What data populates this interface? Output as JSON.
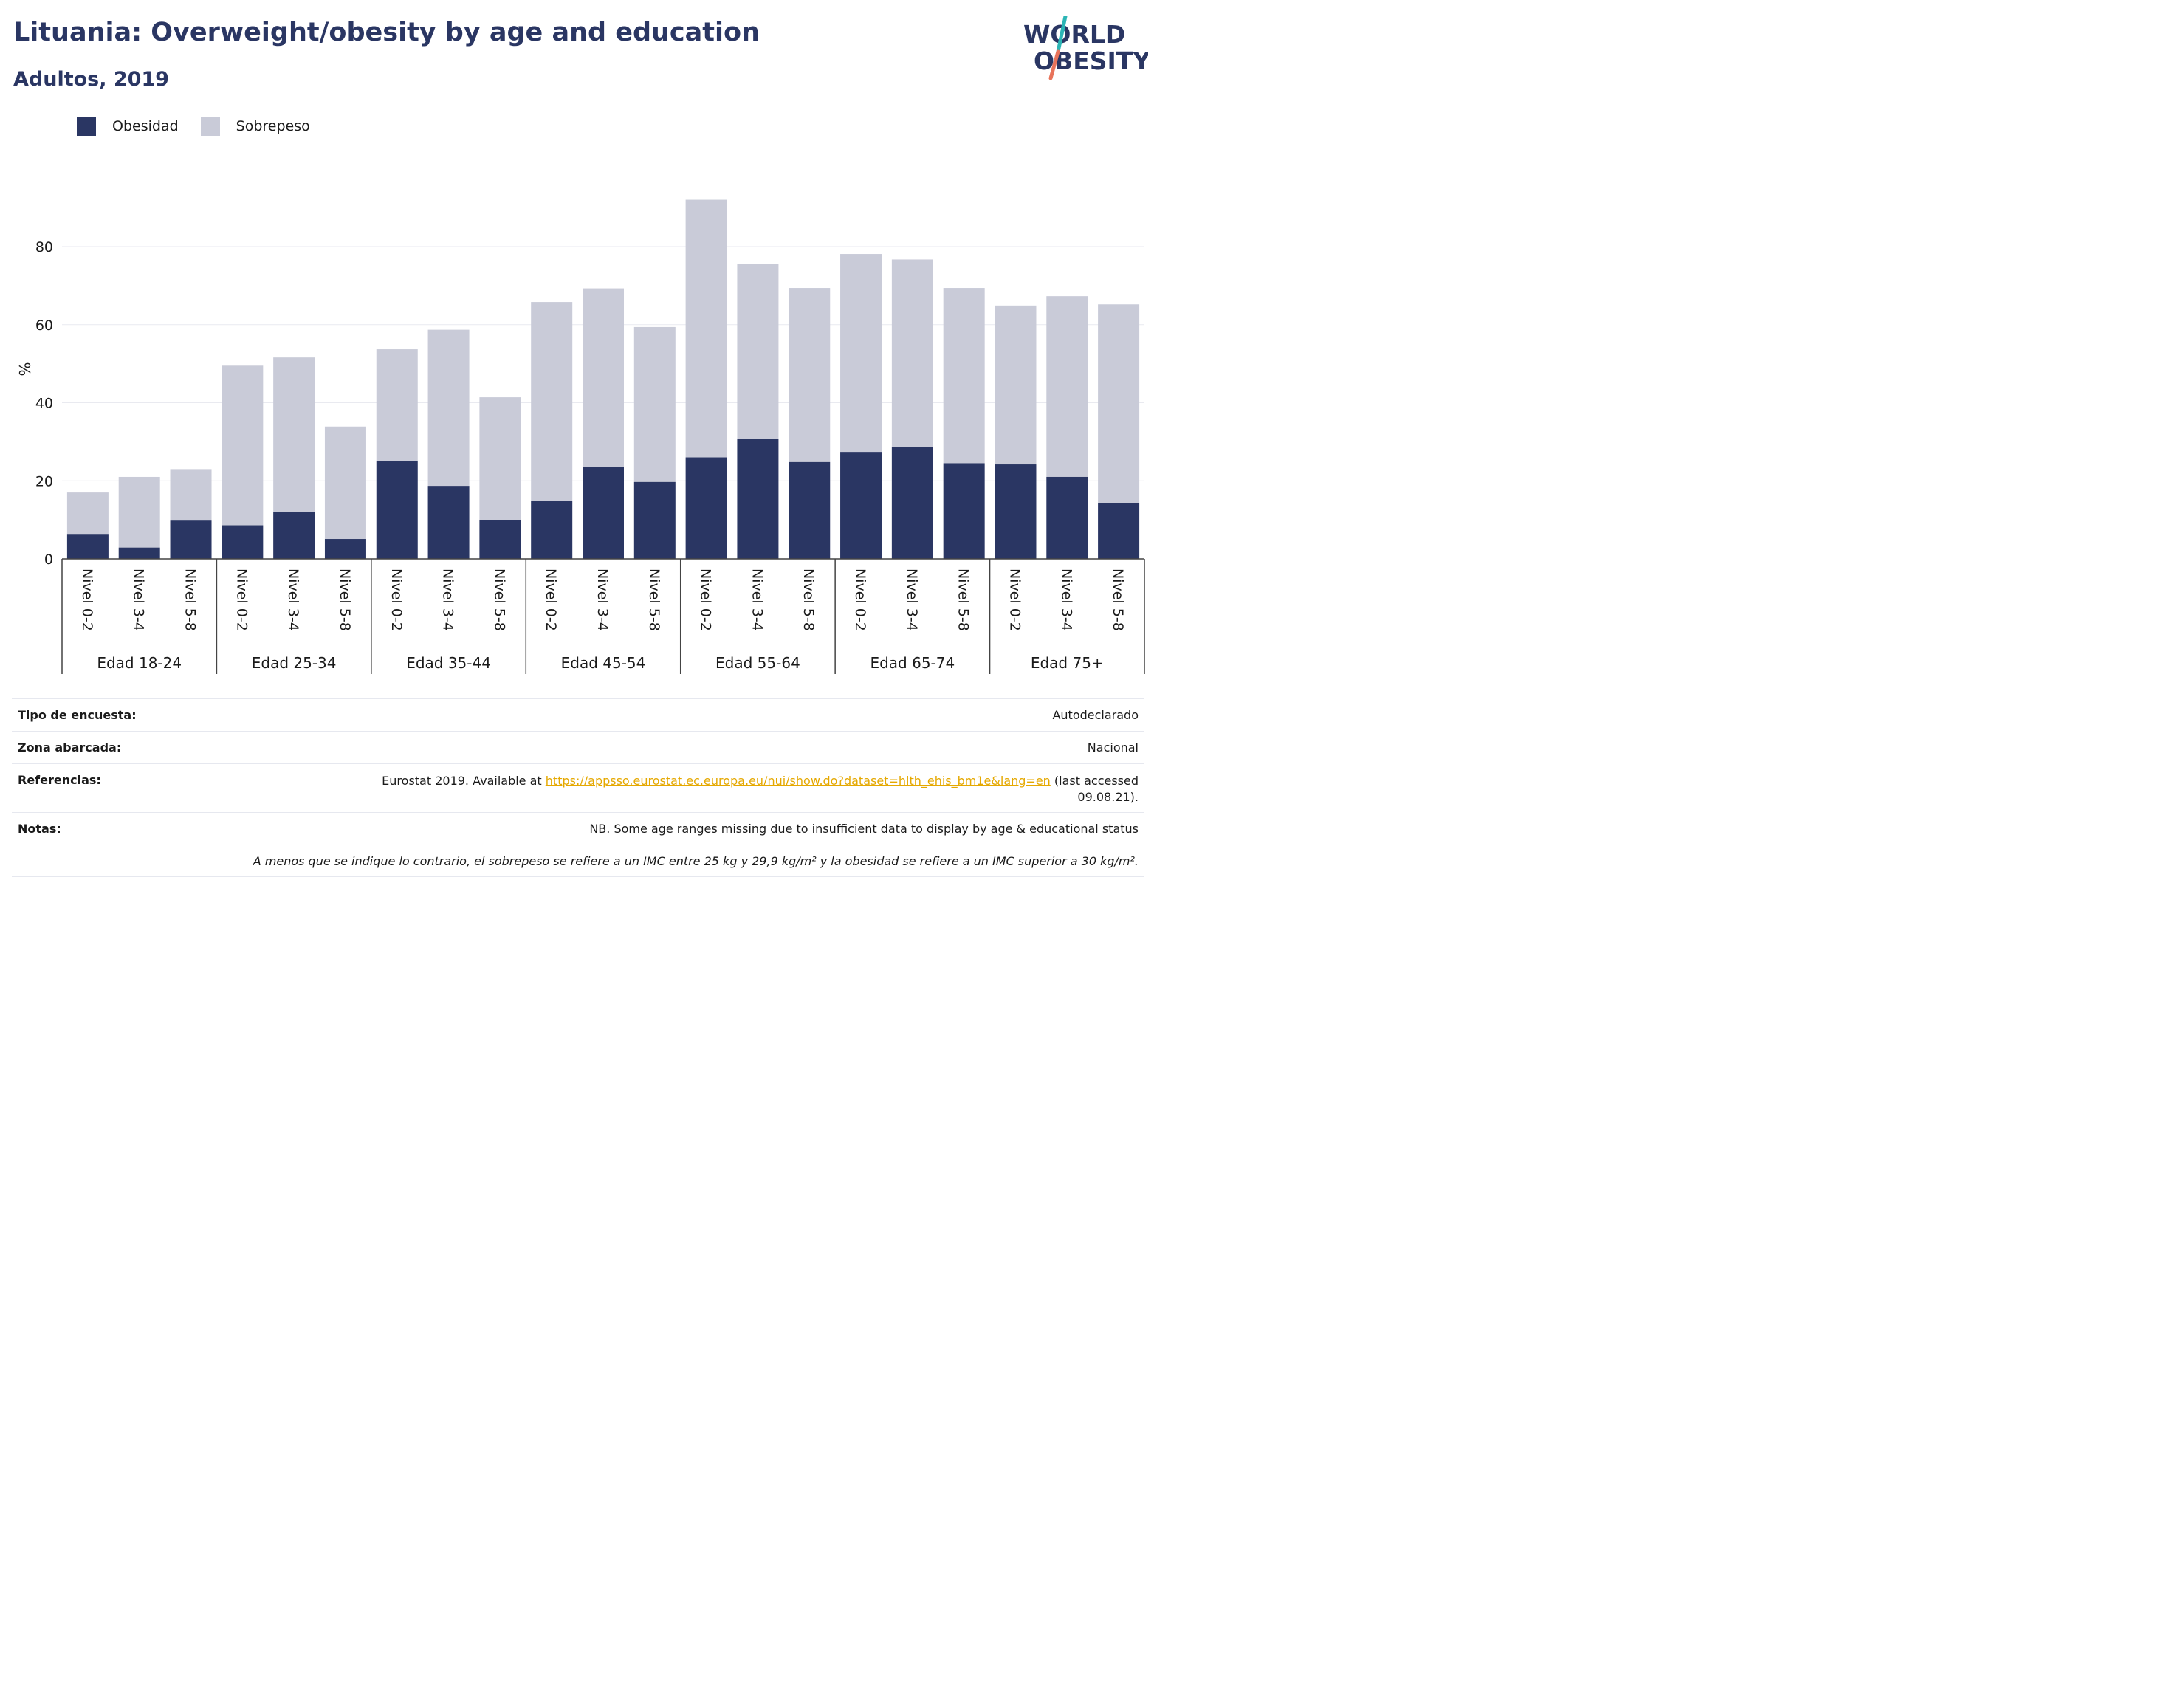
{
  "header": {
    "title": "Lituania: Overweight/obesity by age and education",
    "subtitle": "Adultos, 2019"
  },
  "logo": {
    "line1": "WORLD",
    "line2": "OBESITY",
    "colors": {
      "text": "#2a3663",
      "slash_top": "#2bb5b5",
      "slash_bottom": "#e8735a"
    }
  },
  "legend": {
    "items": [
      {
        "label": "Obesidad",
        "color": "#2a3663"
      },
      {
        "label": "Sobrepeso",
        "color": "#c9cbd8"
      }
    ]
  },
  "chart_data": {
    "type": "bar",
    "stacked": true,
    "ylabel": "%",
    "ylim": [
      0,
      95
    ],
    "yticks": [
      0,
      20,
      40,
      60,
      80
    ],
    "grid": true,
    "legend_position": "top-left",
    "groups": [
      "Edad 18-24",
      "Edad 25-34",
      "Edad 35-44",
      "Edad 45-54",
      "Edad 55-64",
      "Edad 65-74",
      "Edad 75+"
    ],
    "subcategories": [
      "Nivel 0-2",
      "Nivel 3-4",
      "Nivel 5-8"
    ],
    "series": [
      {
        "name": "Obesidad",
        "color": "#2a3663",
        "values": [
          6.2,
          2.9,
          9.8,
          8.6,
          12.0,
          5.1,
          25.0,
          18.7,
          10.0,
          14.8,
          23.6,
          19.7,
          26.0,
          30.8,
          24.8,
          27.4,
          28.7,
          24.5,
          24.2,
          21.0,
          14.2
        ]
      },
      {
        "name": "Sobrepeso",
        "color": "#c9cbd8",
        "values": [
          10.8,
          18.1,
          13.2,
          40.9,
          39.6,
          28.8,
          28.7,
          40.0,
          31.4,
          51.0,
          45.7,
          39.7,
          66.0,
          44.8,
          44.6,
          50.7,
          48.0,
          44.9,
          40.7,
          46.3,
          51.0
        ]
      }
    ]
  },
  "info": {
    "survey": {
      "label": "Tipo de encuesta:",
      "value": "Autodeclarado"
    },
    "area": {
      "label": "Zona abarcada:",
      "value": "Nacional"
    },
    "references": {
      "label": "Referencias:",
      "prefix": "Eurostat 2019. Available at ",
      "link": "https://appsso.eurostat.ec.europa.eu/nui/show.do?dataset=hlth_ehis_bm1e&lang=en",
      "suffix": " (last accessed",
      "line2": "09.08.21)."
    },
    "notes": {
      "label": "Notas:",
      "value": "NB. Some age ranges missing due to insufficient data to display by age & educational status"
    },
    "footnote": "A menos que se indique lo contrario, el sobrepeso se refiere a un IMC entre 25 kg y 29,9 kg/m² y la obesidad se refiere a un IMC superior a 30 kg/m²."
  }
}
